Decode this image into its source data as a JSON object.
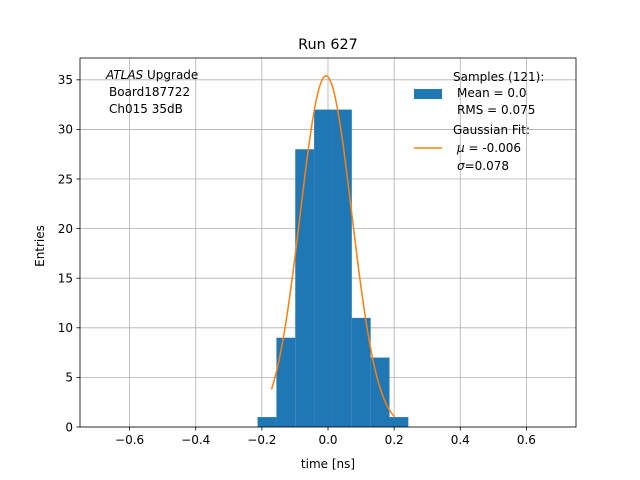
{
  "chart_data": {
    "type": "bar",
    "title": "Run 627",
    "xlabel": "time [ns]",
    "ylabel": "Entries",
    "xlim": [
      -0.75,
      0.75
    ],
    "ylim": [
      0,
      37.2
    ],
    "grid": true,
    "x_ticks": [
      -0.6,
      -0.4,
      -0.2,
      0.0,
      0.2,
      0.4,
      0.6
    ],
    "x_tick_labels": [
      "−0.6",
      "−0.4",
      "−0.2",
      "0.0",
      "0.2",
      "0.4",
      "0.6"
    ],
    "y_ticks": [
      0,
      5,
      10,
      15,
      20,
      25,
      30,
      35
    ],
    "y_tick_labels": [
      "0",
      "5",
      "10",
      "15",
      "20",
      "25",
      "30",
      "35"
    ],
    "annotation": {
      "line1_italic": "ATLAS",
      "line1_rest": " Upgrade",
      "line2": "Board187722",
      "line3": "Ch015 35dB"
    },
    "legend": {
      "placement": "upper-right",
      "hist_lines": [
        "Samples (121):",
        "Mean = 0.0",
        "RMS = 0.075"
      ],
      "fit_line1": "Gaussian Fit:",
      "fit_mu_symbol": "μ",
      "fit_mu_text": " = -0.006",
      "fit_sigma_symbol": "σ",
      "fit_sigma_text": "=0.078"
    },
    "histogram": {
      "bin_edges": [
        -0.213,
        -0.156,
        -0.099,
        -0.042,
        0.015,
        0.072,
        0.129,
        0.186,
        0.243
      ],
      "bin_edges_left_extra": [
        -0.213,
        -0.156
      ],
      "bins": [
        {
          "x0": -0.213,
          "x1": -0.156,
          "count": 1
        },
        {
          "x0": -0.156,
          "x1": -0.099,
          "count": 9
        },
        {
          "x0": -0.099,
          "x1": -0.042,
          "count": 28
        },
        {
          "x0": -0.042,
          "x1": 0.015,
          "count": 32
        },
        {
          "x0": 0.015,
          "x1": 0.072,
          "count": 32
        },
        {
          "x0": 0.072,
          "x1": 0.129,
          "count": 11
        },
        {
          "x0": 0.129,
          "x1": 0.186,
          "count": 7
        },
        {
          "x0": 0.186,
          "x1": 0.243,
          "count": 1
        }
      ],
      "color": "#1f77b4"
    },
    "fit": {
      "amplitude": 35.4,
      "mu": -0.006,
      "sigma": 0.078,
      "x_range": [
        -0.171,
        0.201
      ],
      "color": "#ff7f0e"
    }
  }
}
